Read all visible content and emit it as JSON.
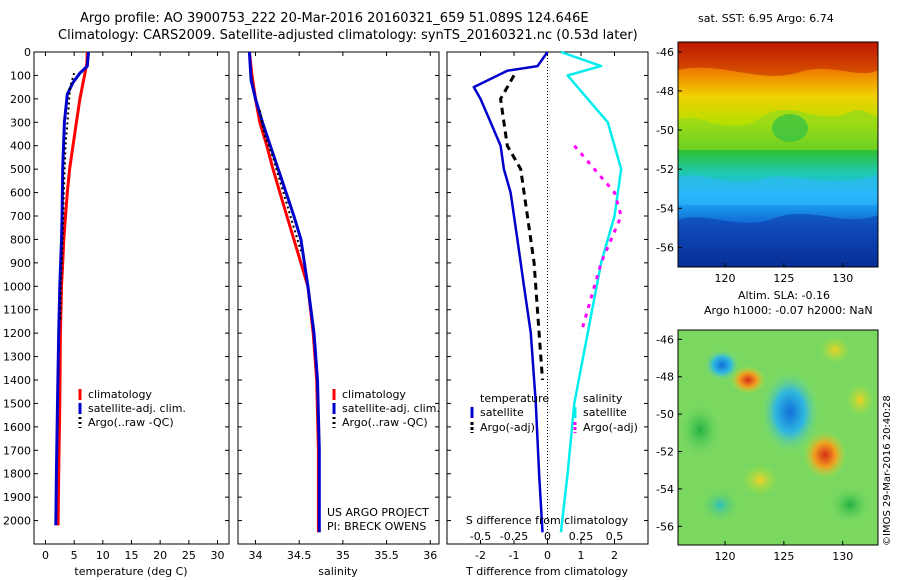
{
  "header": {
    "line1": "Argo profile: AO 3900753_222 20-Mar-2016 20160321_659 51.089S 124.646E",
    "line2": "Climatology: CARS2009. Satellite-adjusted climatology: synTS_20160321.nc (0.53d later)"
  },
  "colors": {
    "climatology": "#ff0000",
    "satellite": "#0000cc",
    "argo": "#000000",
    "satellite_salinity": "#00eeee",
    "argo_salinity": "#ff00ff"
  },
  "chart_data": [
    {
      "type": "line",
      "name": "temperature-panel",
      "xlabel": "temperature (deg C)",
      "ylabel": "",
      "xlim": [
        -2,
        32
      ],
      "ylim": [
        2100,
        0
      ],
      "xticks": [
        0,
        5,
        10,
        15,
        20,
        25,
        30
      ],
      "yticks": [
        0,
        100,
        200,
        300,
        400,
        500,
        600,
        700,
        800,
        900,
        1000,
        1100,
        1200,
        1300,
        1400,
        1500,
        1600,
        1700,
        1800,
        1900,
        2000
      ],
      "legend": [
        "climatology",
        "satellite-adj. clim.",
        "Argo(..raw -QC)"
      ],
      "series": [
        {
          "name": "climatology",
          "x": [
            7.3,
            7.2,
            6.8,
            6.0,
            5.4,
            4.8,
            4.2,
            3.8,
            3.5,
            3.2,
            3.0,
            2.8,
            2.6,
            2.5,
            2.3,
            2.2
          ],
          "y": [
            0,
            50,
            100,
            200,
            300,
            400,
            500,
            600,
            700,
            800,
            900,
            1000,
            1200,
            1500,
            1800,
            2020
          ]
        },
        {
          "name": "satellite-adj. clim.",
          "x": [
            7.5,
            7.3,
            6.0,
            4.8,
            3.8,
            3.3,
            3.0,
            2.9,
            2.8,
            2.5,
            2.3,
            2.1,
            1.9,
            1.8
          ],
          "y": [
            0,
            60,
            90,
            130,
            180,
            300,
            500,
            700,
            800,
            1000,
            1200,
            1500,
            1800,
            2020
          ]
        },
        {
          "name": "Argo(..raw -QC)",
          "x": [
            5.0,
            4.3,
            4.0,
            3.5,
            3.2,
            3.0,
            2.7,
            2.6
          ],
          "y": [
            90,
            150,
            250,
            400,
            600,
            800,
            1000,
            1150
          ]
        }
      ]
    },
    {
      "type": "line",
      "name": "salinity-panel",
      "xlabel": "salinity",
      "ylabel": "",
      "xlim": [
        33.8,
        36.1
      ],
      "ylim": [
        2100,
        0
      ],
      "xticks": [
        34,
        34.5,
        35,
        35.5,
        36
      ],
      "xtick_labels": [
        "34",
        "34.5",
        "35",
        "35.5",
        "36"
      ],
      "legend": [
        "climatology",
        "satellite-adj. clim.",
        "Argo(..raw -QC)"
      ],
      "annotation": [
        "US ARGO PROJECT",
        "PI: BRECK OWENS"
      ],
      "series": [
        {
          "name": "climatology",
          "x": [
            33.93,
            33.96,
            34.0,
            34.05,
            34.13,
            34.2,
            34.28,
            34.36,
            34.44,
            34.52,
            34.6,
            34.66,
            34.7,
            34.72,
            34.72
          ],
          "y": [
            0,
            100,
            200,
            300,
            400,
            500,
            600,
            700,
            800,
            900,
            1000,
            1200,
            1400,
            1700,
            2050
          ]
        },
        {
          "name": "satellite-adj. clim.",
          "x": [
            33.93,
            33.95,
            34.0,
            34.08,
            34.17,
            34.26,
            34.35,
            34.44,
            34.52,
            34.6,
            34.67,
            34.71,
            34.73,
            34.73
          ],
          "y": [
            0,
            120,
            200,
            300,
            400,
            500,
            600,
            700,
            800,
            1000,
            1200,
            1400,
            1700,
            2050
          ]
        },
        {
          "name": "Argo(..raw -QC)",
          "x": [
            34.05,
            34.1,
            34.2,
            34.28,
            34.36,
            34.44,
            34.52
          ],
          "y": [
            250,
            350,
            450,
            550,
            650,
            750,
            850
          ]
        }
      ]
    },
    {
      "type": "line",
      "name": "difference-panel",
      "xlabel": "T difference from climatology",
      "secondary_xlabel": "S difference from climatology",
      "xlim": [
        -3,
        3
      ],
      "ylim": [
        2100,
        0
      ],
      "xticks": [
        -2,
        -1,
        0,
        1,
        2
      ],
      "secondary_xticks": [
        -0.5,
        -0.25,
        0,
        0.25,
        0.5
      ],
      "legend_left_title": "temperature",
      "legend_right_title": "salinity",
      "legend": [
        "satellite",
        "Argo(-adj)",
        "satellite",
        "Argo(-adj)"
      ],
      "series": [
        {
          "name": "satellite",
          "x": [
            0,
            -0.3,
            -1.2,
            -2.2,
            -2.0,
            -1.7,
            -1.4,
            -1.3,
            -1.1,
            -0.9,
            -0.7,
            -0.5,
            -0.35,
            -0.25,
            -0.15
          ],
          "y": [
            0,
            60,
            80,
            150,
            200,
            300,
            400,
            500,
            600,
            800,
            1000,
            1200,
            1500,
            1800,
            2050
          ]
        },
        {
          "name": "Argo(-adj)",
          "x": [
            -1.0,
            -1.4,
            -1.3,
            -1.2,
            -0.8,
            -0.6,
            -0.4,
            -0.25,
            -0.15
          ],
          "y": [
            100,
            200,
            300,
            400,
            500,
            700,
            900,
            1200,
            1400
          ]
        },
        {
          "name": "satellite",
          "x": [
            0.1,
            0.4,
            0.15,
            0.3,
            0.45,
            0.55,
            0.5,
            0.4,
            0.3,
            0.2,
            0.15,
            0.1
          ],
          "y": [
            0,
            60,
            100,
            200,
            300,
            500,
            700,
            900,
            1200,
            1500,
            1800,
            2050
          ]
        },
        {
          "name": "Argo(-adj)",
          "x": [
            0.2,
            0.35,
            0.5,
            0.55,
            0.4,
            0.25
          ],
          "y": [
            400,
            500,
            600,
            700,
            900,
            1200
          ]
        }
      ]
    },
    {
      "type": "heatmap",
      "name": "sst-map",
      "title": "sat. SST: 6.95 Argo: 6.74",
      "xticks": [
        120,
        125,
        130
      ],
      "yticks": [
        -46,
        -48,
        -50,
        -52,
        -54,
        -56
      ],
      "xlim": [
        116,
        133
      ],
      "ylim": [
        -57,
        -45.5
      ]
    },
    {
      "type": "heatmap",
      "name": "sla-map",
      "title": [
        "Altim. SLA: -0.16",
        "Argo h1000: -0.07 h2000: NaN"
      ],
      "xticks": [
        120,
        125,
        130
      ],
      "yticks": [
        -46,
        -48,
        -50,
        -52,
        -54,
        -56
      ],
      "xlim": [
        116,
        133
      ],
      "ylim": [
        -57,
        -45.5
      ],
      "side_label": "©IMOS 29-Mar-2016 20:40:28"
    }
  ]
}
